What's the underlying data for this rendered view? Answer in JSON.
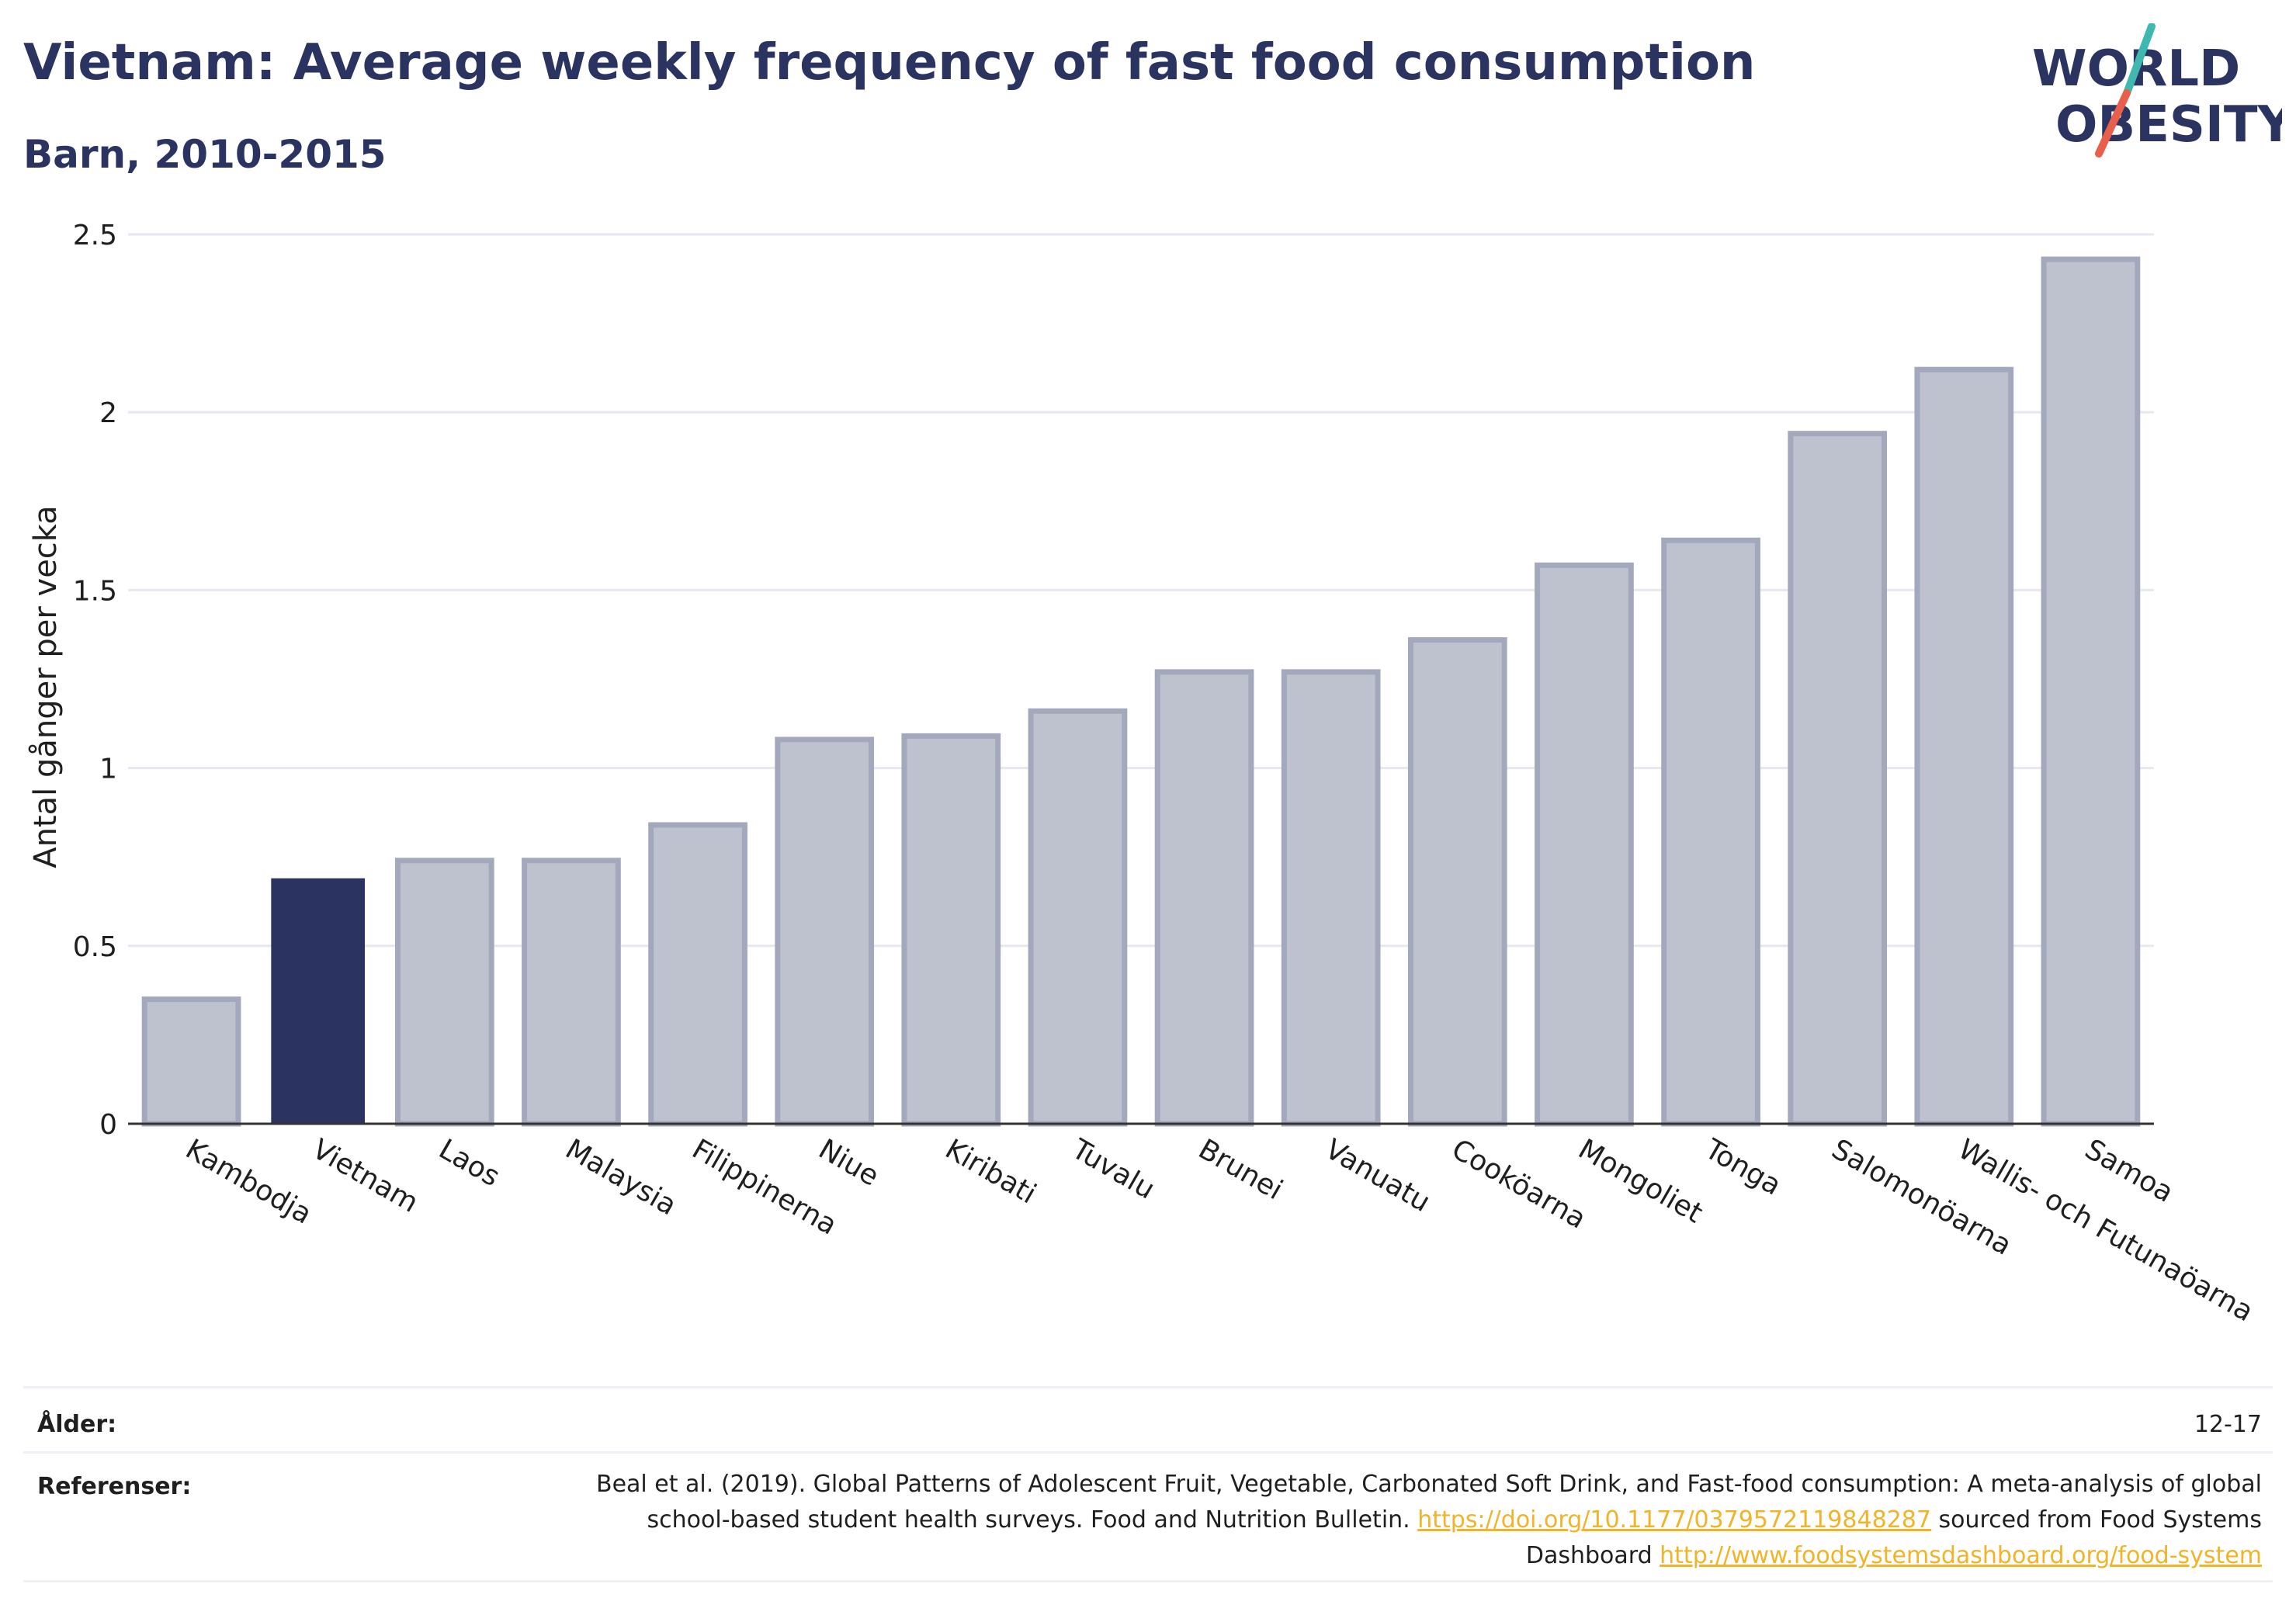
{
  "header": {
    "title": "Vietnam: Average weekly frequency of fast food consumption",
    "subtitle": "Barn, 2010-2015"
  },
  "logo": {
    "line1": "WORLD",
    "line2": "OBESITY",
    "text_color": "#2b3461",
    "slash_colors": [
      "#3fb8b0",
      "#e8604c"
    ]
  },
  "chart_data": {
    "type": "bar",
    "title": "Vietnam: Average weekly frequency of fast food consumption",
    "subtitle": "Barn, 2010-2015",
    "ylabel": "Antal gånger per vecka",
    "xlabel": "",
    "ylim": [
      0,
      2.5
    ],
    "yticks": [
      0,
      0.5,
      1,
      1.5,
      2,
      2.5
    ],
    "ytick_labels": [
      "0",
      "0.5",
      "1",
      "1.5",
      "2",
      "2.5"
    ],
    "grid": true,
    "legend": "none",
    "categories": [
      "Kambodja",
      "Vietnam",
      "Laos",
      "Malaysia",
      "Filippinerna",
      "Niue",
      "Kiribati",
      "Tuvalu",
      "Brunei",
      "Vanuatu",
      "Cooköarna",
      "Mongoliet",
      "Tonga",
      "Salomonöarna",
      "Wallis- och Futunaöarna",
      "Samoa"
    ],
    "values": [
      0.35,
      0.69,
      0.74,
      0.74,
      0.84,
      1.08,
      1.09,
      1.16,
      1.27,
      1.27,
      1.36,
      1.57,
      1.64,
      1.94,
      2.12,
      2.43
    ],
    "highlight": "Vietnam",
    "colors": {
      "bar": "#bec2cf",
      "bar_border": "#a3a8bc",
      "highlight": "#2b3461"
    }
  },
  "footer": {
    "age_label": "Ålder:",
    "age_value": "12-17",
    "refs_label": "Referenser:",
    "refs_text1": "Beal et al. (2019). Global Patterns of Adolescent Fruit, Vegetable, Carbonated Soft Drink, and Fast-food consumption: A meta-analysis of global school-based student health surveys. Food and Nutrition Bulletin. ",
    "refs_link1": "https://doi.org/10.1177/0379572119848287",
    "refs_text2": " sourced from Food Systems Dashboard ",
    "refs_link2": "http://www.foodsystemsdashboard.org/food-system"
  }
}
